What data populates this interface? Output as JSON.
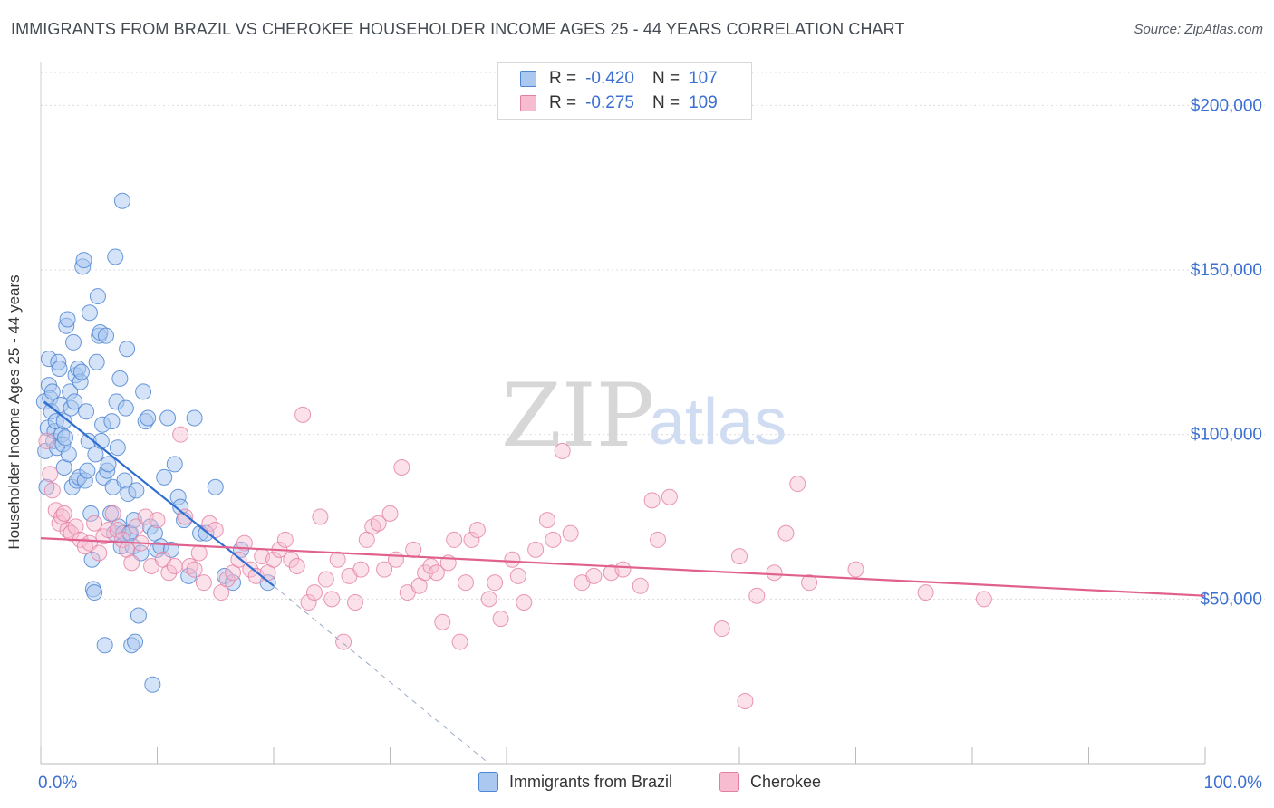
{
  "title": "IMMIGRANTS FROM BRAZIL VS CHEROKEE HOUSEHOLDER INCOME AGES 25 - 44 YEARS CORRELATION CHART",
  "source": "Source: ZipAtlas.com",
  "watermark": {
    "zip": "ZIP",
    "atlas": "atlas"
  },
  "legend_top": {
    "rows": [
      {
        "r_label": "R =",
        "r_value": "-0.420",
        "n_label": "N =",
        "n_value": "107"
      },
      {
        "r_label": "R =",
        "r_value": "-0.275",
        "n_label": "N =",
        "n_value": "109"
      }
    ]
  },
  "legend_bottom": {
    "items": [
      "Immigrants from Brazil",
      "Cherokee"
    ]
  },
  "colors": {
    "brazil_fill": "#aac8f0",
    "brazil_stroke": "#4f86d4",
    "brazil_line": "#2f6fd0",
    "cherokee_fill": "#f7bcd0",
    "cherokee_stroke": "#e47ea1",
    "cherokee_line": "#e0608e",
    "tick_text": "#3b6fd1",
    "grid": "#dcdcdc"
  },
  "chart_data": {
    "type": "scatter",
    "title": "IMMIGRANTS FROM BRAZIL VS CHEROKEE HOUSEHOLDER INCOME AGES 25 - 44 YEARS CORRELATION CHART",
    "xlabel": "",
    "ylabel": "Householder Income Ages 25 - 44 years",
    "xlim": [
      0,
      100
    ],
    "ylim": [
      0,
      210000
    ],
    "x_tick_labels": [
      "0.0%",
      "100.0%"
    ],
    "y_ticks": [
      50000,
      100000,
      150000,
      200000
    ],
    "y_tick_labels": [
      "$50,000",
      "$100,000",
      "$150,000",
      "$200,000"
    ],
    "grid": true,
    "legend": "bottom-center",
    "series": [
      {
        "name": "Immigrants from Brazil",
        "points": [
          [
            0.3,
            110000
          ],
          [
            0.4,
            95000
          ],
          [
            0.5,
            84000
          ],
          [
            0.6,
            102000
          ],
          [
            0.7,
            115000
          ],
          [
            0.7,
            123000
          ],
          [
            0.8,
            111000
          ],
          [
            0.9,
            107000
          ],
          [
            1.0,
            113000
          ],
          [
            1.1,
            98000
          ],
          [
            1.2,
            101000
          ],
          [
            1.3,
            104000
          ],
          [
            1.4,
            96000
          ],
          [
            1.5,
            122000
          ],
          [
            1.6,
            120000
          ],
          [
            1.7,
            109000
          ],
          [
            1.8,
            100000
          ],
          [
            1.9,
            97000
          ],
          [
            2.0,
            90000
          ],
          [
            2.0,
            104000
          ],
          [
            2.1,
            99000
          ],
          [
            2.2,
            133000
          ],
          [
            2.3,
            135000
          ],
          [
            2.4,
            94000
          ],
          [
            2.5,
            113000
          ],
          [
            2.6,
            108000
          ],
          [
            2.7,
            84000
          ],
          [
            2.8,
            128000
          ],
          [
            2.9,
            110000
          ],
          [
            3.0,
            118000
          ],
          [
            3.1,
            86000
          ],
          [
            3.2,
            120000
          ],
          [
            3.3,
            87000
          ],
          [
            3.4,
            116000
          ],
          [
            3.5,
            119000
          ],
          [
            3.6,
            151000
          ],
          [
            3.7,
            153000
          ],
          [
            3.8,
            86000
          ],
          [
            3.9,
            107000
          ],
          [
            4.0,
            89000
          ],
          [
            4.1,
            98000
          ],
          [
            4.2,
            137000
          ],
          [
            4.3,
            76000
          ],
          [
            4.4,
            62000
          ],
          [
            4.5,
            53000
          ],
          [
            4.6,
            52000
          ],
          [
            4.7,
            94000
          ],
          [
            4.8,
            122000
          ],
          [
            4.9,
            142000
          ],
          [
            5.0,
            130000
          ],
          [
            5.1,
            131000
          ],
          [
            5.2,
            98000
          ],
          [
            5.3,
            103000
          ],
          [
            5.4,
            87000
          ],
          [
            5.5,
            36000
          ],
          [
            5.6,
            130000
          ],
          [
            5.7,
            89000
          ],
          [
            5.8,
            91000
          ],
          [
            6.0,
            76000
          ],
          [
            6.1,
            104000
          ],
          [
            6.2,
            84000
          ],
          [
            6.3,
            70000
          ],
          [
            6.4,
            154000
          ],
          [
            6.5,
            110000
          ],
          [
            6.6,
            96000
          ],
          [
            6.7,
            72000
          ],
          [
            6.8,
            117000
          ],
          [
            6.9,
            66000
          ],
          [
            7.0,
            171000
          ],
          [
            7.1,
            70000
          ],
          [
            7.2,
            86000
          ],
          [
            7.3,
            108000
          ],
          [
            7.4,
            126000
          ],
          [
            7.5,
            82000
          ],
          [
            7.6,
            70000
          ],
          [
            7.7,
            70000
          ],
          [
            7.8,
            36000
          ],
          [
            7.9,
            66000
          ],
          [
            8.0,
            74000
          ],
          [
            8.1,
            37000
          ],
          [
            8.2,
            83000
          ],
          [
            8.4,
            45000
          ],
          [
            8.6,
            64000
          ],
          [
            8.8,
            113000
          ],
          [
            9.0,
            104000
          ],
          [
            9.2,
            105000
          ],
          [
            9.4,
            72000
          ],
          [
            9.6,
            24000
          ],
          [
            9.8,
            70000
          ],
          [
            10.0,
            65000
          ],
          [
            10.3,
            66000
          ],
          [
            10.6,
            87000
          ],
          [
            10.9,
            105000
          ],
          [
            11.2,
            65000
          ],
          [
            11.5,
            91000
          ],
          [
            11.8,
            81000
          ],
          [
            12.0,
            78000
          ],
          [
            12.3,
            74000
          ],
          [
            12.7,
            57000
          ],
          [
            13.2,
            105000
          ],
          [
            13.7,
            70000
          ],
          [
            14.2,
            70000
          ],
          [
            15.0,
            84000
          ],
          [
            15.8,
            57000
          ],
          [
            16.5,
            55000
          ],
          [
            17.2,
            65000
          ],
          [
            19.5,
            55000
          ]
        ]
      },
      {
        "name": "Cherokee",
        "points": [
          [
            0.5,
            98000
          ],
          [
            0.8,
            88000
          ],
          [
            1.0,
            83000
          ],
          [
            1.3,
            77000
          ],
          [
            1.6,
            73000
          ],
          [
            1.8,
            75000
          ],
          [
            2.0,
            76000
          ],
          [
            2.3,
            71000
          ],
          [
            2.6,
            70000
          ],
          [
            3.0,
            72000
          ],
          [
            3.4,
            68000
          ],
          [
            3.8,
            66000
          ],
          [
            4.2,
            67000
          ],
          [
            4.6,
            73000
          ],
          [
            5.0,
            64000
          ],
          [
            5.4,
            69000
          ],
          [
            5.8,
            71000
          ],
          [
            6.2,
            76000
          ],
          [
            6.6,
            71000
          ],
          [
            7.0,
            68000
          ],
          [
            7.4,
            65000
          ],
          [
            7.8,
            61000
          ],
          [
            8.2,
            72000
          ],
          [
            8.6,
            67000
          ],
          [
            9.0,
            75000
          ],
          [
            9.5,
            60000
          ],
          [
            10.0,
            74000
          ],
          [
            10.5,
            62000
          ],
          [
            11.0,
            58000
          ],
          [
            11.5,
            60000
          ],
          [
            12.0,
            100000
          ],
          [
            12.4,
            75000
          ],
          [
            12.8,
            60000
          ],
          [
            13.2,
            59000
          ],
          [
            13.6,
            64000
          ],
          [
            14.0,
            55000
          ],
          [
            14.5,
            73000
          ],
          [
            15.0,
            71000
          ],
          [
            15.5,
            52000
          ],
          [
            16.0,
            56000
          ],
          [
            16.5,
            58000
          ],
          [
            17.0,
            62000
          ],
          [
            17.5,
            67000
          ],
          [
            18.0,
            59000
          ],
          [
            18.5,
            57000
          ],
          [
            19.0,
            63000
          ],
          [
            19.5,
            58000
          ],
          [
            20.0,
            62000
          ],
          [
            20.5,
            65000
          ],
          [
            21.0,
            68000
          ],
          [
            21.5,
            62000
          ],
          [
            22.0,
            60000
          ],
          [
            22.5,
            106000
          ],
          [
            23.0,
            49000
          ],
          [
            23.5,
            52000
          ],
          [
            24.0,
            75000
          ],
          [
            24.5,
            56000
          ],
          [
            25.0,
            50000
          ],
          [
            25.5,
            62000
          ],
          [
            26.0,
            37000
          ],
          [
            26.5,
            57000
          ],
          [
            27.0,
            49000
          ],
          [
            27.5,
            59000
          ],
          [
            28.0,
            68000
          ],
          [
            28.5,
            72000
          ],
          [
            29.0,
            73000
          ],
          [
            29.5,
            59000
          ],
          [
            30.0,
            76000
          ],
          [
            30.5,
            62000
          ],
          [
            31.0,
            90000
          ],
          [
            31.5,
            52000
          ],
          [
            32.0,
            65000
          ],
          [
            32.5,
            54000
          ],
          [
            33.0,
            58000
          ],
          [
            33.5,
            60000
          ],
          [
            34.0,
            58000
          ],
          [
            34.5,
            43000
          ],
          [
            35.0,
            61000
          ],
          [
            35.5,
            68000
          ],
          [
            36.0,
            37000
          ],
          [
            36.5,
            55000
          ],
          [
            37.0,
            68000
          ],
          [
            37.5,
            71000
          ],
          [
            38.5,
            50000
          ],
          [
            39.0,
            55000
          ],
          [
            39.5,
            44000
          ],
          [
            40.5,
            62000
          ],
          [
            41.0,
            57000
          ],
          [
            41.5,
            49000
          ],
          [
            42.5,
            65000
          ],
          [
            43.5,
            74000
          ],
          [
            44.0,
            68000
          ],
          [
            44.8,
            95000
          ],
          [
            45.5,
            70000
          ],
          [
            46.5,
            55000
          ],
          [
            47.5,
            57000
          ],
          [
            49.0,
            58000
          ],
          [
            50.0,
            59000
          ],
          [
            51.5,
            54000
          ],
          [
            52.5,
            80000
          ],
          [
            53.0,
            68000
          ],
          [
            54.0,
            81000
          ],
          [
            58.5,
            41000
          ],
          [
            60.0,
            63000
          ],
          [
            61.5,
            51000
          ],
          [
            63.0,
            58000
          ],
          [
            64.0,
            70000
          ],
          [
            65.0,
            85000
          ],
          [
            66.0,
            55000
          ],
          [
            70.0,
            59000
          ],
          [
            76.0,
            52000
          ],
          [
            81.0,
            50000
          ],
          [
            60.5,
            19000
          ]
        ]
      }
    ],
    "trend_lines": [
      {
        "series": "Immigrants from Brazil",
        "solid": [
          [
            0.3,
            110000
          ],
          [
            20,
            54000
          ]
        ],
        "dashed": [
          [
            20,
            54000
          ],
          [
            38.5,
            0
          ]
        ]
      },
      {
        "series": "Cherokee",
        "solid": [
          [
            0,
            68500
          ],
          [
            100,
            51000
          ]
        ]
      }
    ]
  }
}
